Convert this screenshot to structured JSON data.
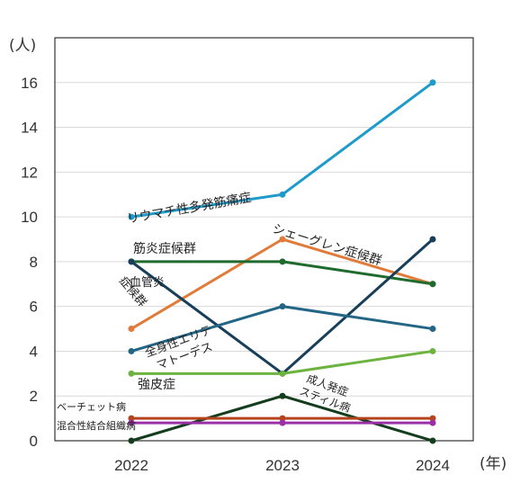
{
  "chart_data": {
    "type": "line",
    "x": [
      "2022",
      "2023",
      "2024"
    ],
    "y_unit": "(人)",
    "x_unit": "(年)",
    "yticks": [
      "0",
      "2",
      "4",
      "6",
      "8",
      "10",
      "12",
      "14",
      "16"
    ],
    "ylim": [
      0,
      18
    ],
    "grid": true,
    "legend": "inline labels",
    "series": [
      {
        "name": "リウマチ性多発筋痛症",
        "values": [
          10,
          11,
          16
        ],
        "color": "#1f9bc9"
      },
      {
        "name": "シェーグレン症候群",
        "values": [
          5,
          9,
          7
        ],
        "color": "#e07b3a"
      },
      {
        "name": "筋炎症候群",
        "values": [
          8,
          8,
          7
        ],
        "color": "#1f6b2e"
      },
      {
        "name": "血管炎症候群",
        "values": [
          8,
          3,
          9
        ],
        "color": "#173f5a"
      },
      {
        "name": "全身性エリテマトーデス",
        "values": [
          4,
          6,
          5
        ],
        "color": "#226585"
      },
      {
        "name": "強皮症",
        "values": [
          3,
          3,
          4
        ],
        "color": "#6db33f"
      },
      {
        "name": "成人発症スティル病",
        "values": [
          0,
          2,
          0
        ],
        "color": "#143d1d"
      },
      {
        "name": "ベーチェット病",
        "values": [
          1,
          1,
          1
        ],
        "color": "#b5441e"
      },
      {
        "name": "混合性結合組織病",
        "values": [
          0.8,
          0.8,
          0.8
        ],
        "color": "#9b2fa6"
      }
    ]
  }
}
